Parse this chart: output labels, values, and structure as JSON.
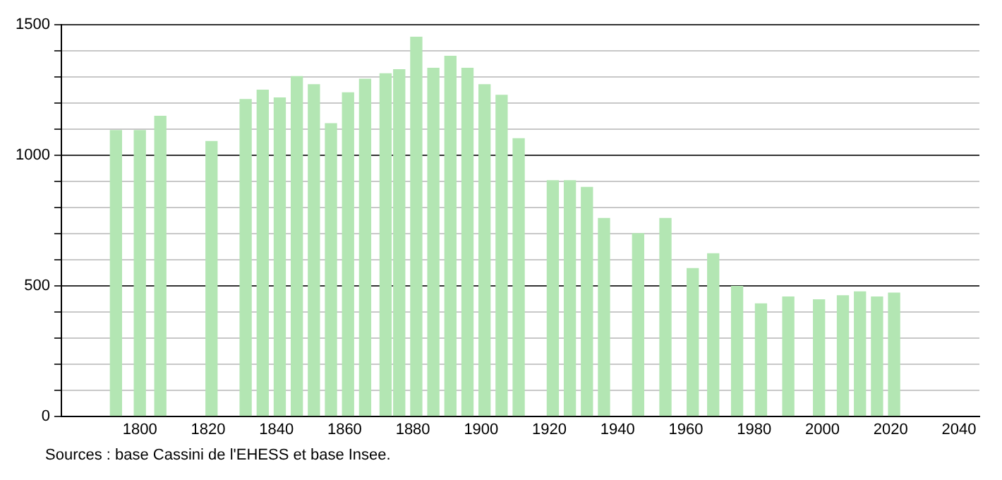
{
  "chart_data": {
    "type": "bar",
    "x": [
      1793,
      1800,
      1806,
      1821,
      1831,
      1836,
      1841,
      1846,
      1851,
      1856,
      1861,
      1866,
      1872,
      1876,
      1881,
      1886,
      1891,
      1896,
      1901,
      1906,
      1911,
      1921,
      1926,
      1931,
      1936,
      1946,
      1954,
      1962,
      1968,
      1975,
      1982,
      1990,
      1999,
      2006,
      2011,
      2016,
      2021
    ],
    "values": [
      1095,
      1095,
      1150,
      1053,
      1214,
      1250,
      1220,
      1302,
      1271,
      1121,
      1240,
      1292,
      1313,
      1328,
      1453,
      1334,
      1380,
      1334,
      1271,
      1230,
      1064,
      903,
      903,
      877,
      758,
      700,
      758,
      566,
      623,
      498,
      431,
      457,
      446,
      462,
      477,
      457,
      472
    ],
    "color": "#b3e6b3",
    "xlim": [
      1777,
      2046
    ],
    "xticks": [
      1800,
      1820,
      1840,
      1860,
      1880,
      1900,
      1920,
      1940,
      1960,
      1980,
      2000,
      2020,
      2040
    ],
    "ylim": [
      0,
      1500
    ],
    "yticks": [
      0,
      {
        "value": 100,
        "label": null
      },
      {
        "value": 200,
        "label": null
      },
      {
        "value": 300,
        "label": null
      },
      {
        "value": 400,
        "label": null
      },
      500,
      {
        "value": 600,
        "label": null
      },
      {
        "value": 700,
        "label": null
      },
      {
        "value": 800,
        "label": null
      },
      {
        "value": 900,
        "label": null
      },
      1000,
      {
        "value": 1100,
        "label": null
      },
      {
        "value": 1200,
        "label": null
      },
      {
        "value": 1300,
        "label": null
      },
      {
        "value": 1400,
        "label": null
      },
      1500
    ],
    "grid": "y",
    "legend": false,
    "annotations": [
      "Sources : base Cassini de l'EHESS et base Insee."
    ]
  }
}
